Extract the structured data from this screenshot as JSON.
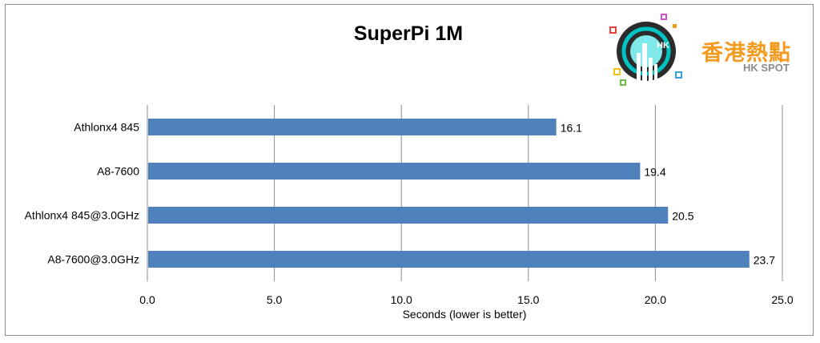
{
  "chart_data": {
    "type": "bar",
    "orientation": "horizontal",
    "title": "SuperPi 1M",
    "xlabel": "Seconds (lower is better)",
    "ylabel": "",
    "categories": [
      "Athlonx4 845",
      "A8-7600",
      "Athlonx4 845@3.0GHz",
      "A8-7600@3.0GHz"
    ],
    "values": [
      16.1,
      19.4,
      20.5,
      23.7
    ],
    "value_labels": [
      "16.1",
      "19.4",
      "20.5",
      "23.7"
    ],
    "xlim": [
      0,
      25
    ],
    "ticks": [
      "0.0",
      "5.0",
      "10.0",
      "15.0",
      "20.0",
      "25.0"
    ],
    "tick_values": [
      0,
      5,
      10,
      15,
      20,
      25
    ],
    "grid": "vertical",
    "legend": "none",
    "bar_color": "#4f81bd"
  },
  "logo": {
    "brand_cn": "香港熱點",
    "brand_en": "HK SPOT",
    "badge_text": "HK",
    "brand_color": "#f39a1f",
    "circle_color": "#2b2b2b",
    "ring_color": "#00c4c4"
  }
}
